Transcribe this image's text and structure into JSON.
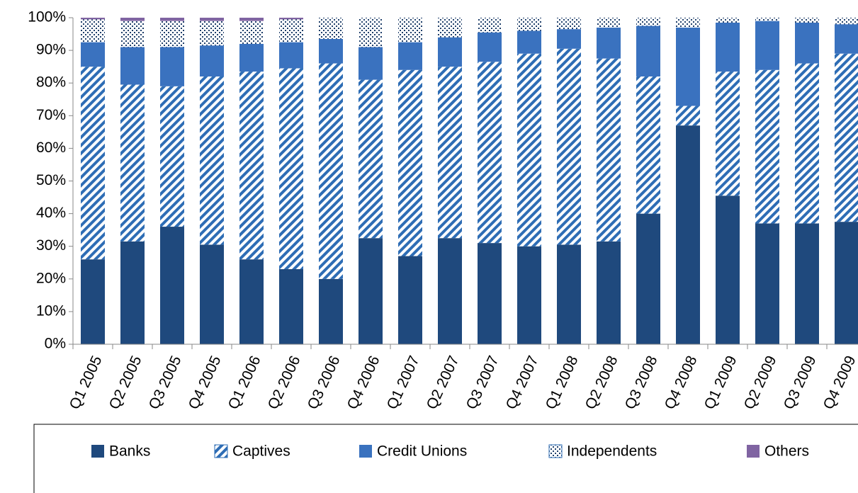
{
  "chart_data": {
    "type": "stacked-bar",
    "categories": [
      "Q1 2005",
      "Q2 2005",
      "Q3 2005",
      "Q4 2005",
      "Q1 2006",
      "Q2 2006",
      "Q3 2006",
      "Q4 2006",
      "Q1 2007",
      "Q2 2007",
      "Q3 2007",
      "Q4 2007",
      "Q1 2008",
      "Q2 2008",
      "Q3 2008",
      "Q4 2008",
      "Q1 2009",
      "Q2 2009",
      "Q3 2009",
      "Q4 2009"
    ],
    "series": [
      {
        "name": "Banks",
        "color": "#1f497d",
        "values": [
          26,
          31.5,
          36,
          30.5,
          26,
          23,
          20,
          32.5,
          27,
          32.5,
          31,
          30,
          30.5,
          31.5,
          40,
          67,
          45.5,
          37,
          37,
          37.5
        ]
      },
      {
        "name": "Captives",
        "color": "#2e6db5",
        "values": [
          59,
          48,
          43,
          51.5,
          57.5,
          61.5,
          66,
          48.5,
          57,
          52.5,
          55.5,
          59,
          60,
          56,
          42,
          6,
          38,
          47,
          49,
          51.5
        ]
      },
      {
        "name": "Credit Unions",
        "color": "#3a72bf",
        "values": [
          7.5,
          11.5,
          12,
          9.5,
          8.5,
          8,
          7.5,
          10,
          8.5,
          9,
          9,
          7,
          6,
          9.5,
          15.5,
          24,
          15,
          15,
          12.5,
          9
        ]
      },
      {
        "name": "Independents",
        "color": "#1f3f6a",
        "values": [
          7,
          8,
          8,
          7.5,
          7,
          7,
          6.5,
          9,
          7.5,
          6,
          4.5,
          4,
          3.5,
          3,
          2.5,
          3,
          1.5,
          1,
          1.5,
          2
        ]
      },
      {
        "name": "Others",
        "color": "#8064a2",
        "values": [
          0.5,
          1,
          1,
          1,
          1,
          0.5,
          0,
          0,
          0,
          0,
          0,
          0,
          0,
          0,
          0,
          0,
          0,
          0,
          0,
          0
        ]
      }
    ],
    "ylim": [
      0,
      100
    ],
    "yticks": [
      {
        "value": 0,
        "label": "0%"
      },
      {
        "value": 10,
        "label": "10%"
      },
      {
        "value": 20,
        "label": "20%"
      },
      {
        "value": 30,
        "label": "30%"
      },
      {
        "value": 40,
        "label": "40%"
      },
      {
        "value": 50,
        "label": "50%"
      },
      {
        "value": 60,
        "label": "60%"
      },
      {
        "value": 70,
        "label": "70%"
      },
      {
        "value": 80,
        "label": "80%"
      },
      {
        "value": 90,
        "label": "90%"
      },
      {
        "value": 100,
        "label": "100%"
      }
    ],
    "legend": "bottom"
  }
}
